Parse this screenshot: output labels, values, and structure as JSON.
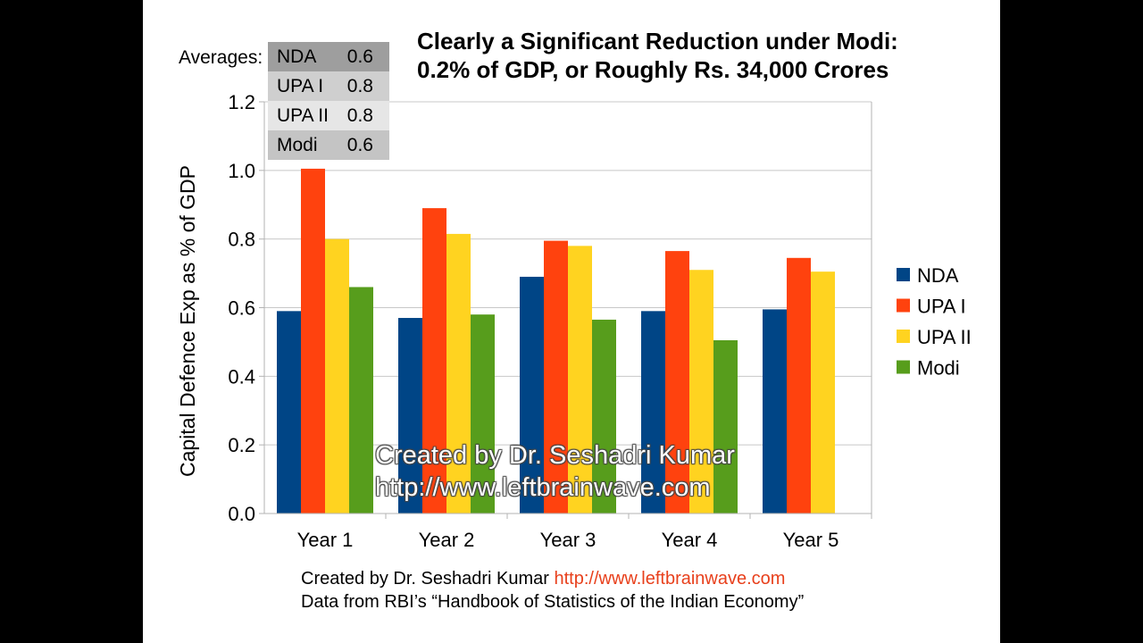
{
  "title": {
    "line1": "Clearly a Significant Reduction under Modi:",
    "line2": "0.2% of GDP, or Roughly Rs. 34,000 Crores"
  },
  "averages": {
    "label": "Averages:",
    "rows": [
      {
        "name": "NDA",
        "value": "0.6",
        "bg": "#9e9e9e"
      },
      {
        "name": "UPA I",
        "value": "0.8",
        "bg": "#cfcfcf"
      },
      {
        "name": "UPA II",
        "value": "0.8",
        "bg": "#e6e6e6"
      },
      {
        "name": "Modi",
        "value": "0.6",
        "bg": "#c4c4c4"
      }
    ]
  },
  "watermark": {
    "line1": "Created by Dr. Seshadri Kumar",
    "line2": "http://www.leftbrainwave.com"
  },
  "footer": {
    "credit": "Created by Dr. Seshadri Kumar",
    "url": "http://www.leftbrainwave.com",
    "source": "Data from RBI’s “Handbook of Statistics of the Indian Economy”"
  },
  "chart_data": {
    "type": "bar",
    "ylabel": "Capital Defence Exp as % of GDP",
    "xlabel": "",
    "ylim": [
      0,
      1.2
    ],
    "yticks": [
      "0.0",
      "0.2",
      "0.4",
      "0.6",
      "0.8",
      "1.0",
      "1.2"
    ],
    "grid": true,
    "legend_position": "right",
    "categories": [
      "Year 1",
      "Year 2",
      "Year 3",
      "Year 4",
      "Year 5"
    ],
    "series": [
      {
        "name": "NDA",
        "color": "#004586",
        "values": [
          0.59,
          0.57,
          0.69,
          0.59,
          0.595
        ]
      },
      {
        "name": "UPA I",
        "color": "#ff420e",
        "values": [
          1.005,
          0.89,
          0.795,
          0.765,
          0.745
        ]
      },
      {
        "name": "UPA II",
        "color": "#ffd320",
        "values": [
          0.8,
          0.815,
          0.78,
          0.71,
          0.705
        ]
      },
      {
        "name": "Modi",
        "color": "#579d1c",
        "values": [
          0.66,
          0.58,
          0.565,
          0.505,
          null
        ]
      }
    ]
  }
}
